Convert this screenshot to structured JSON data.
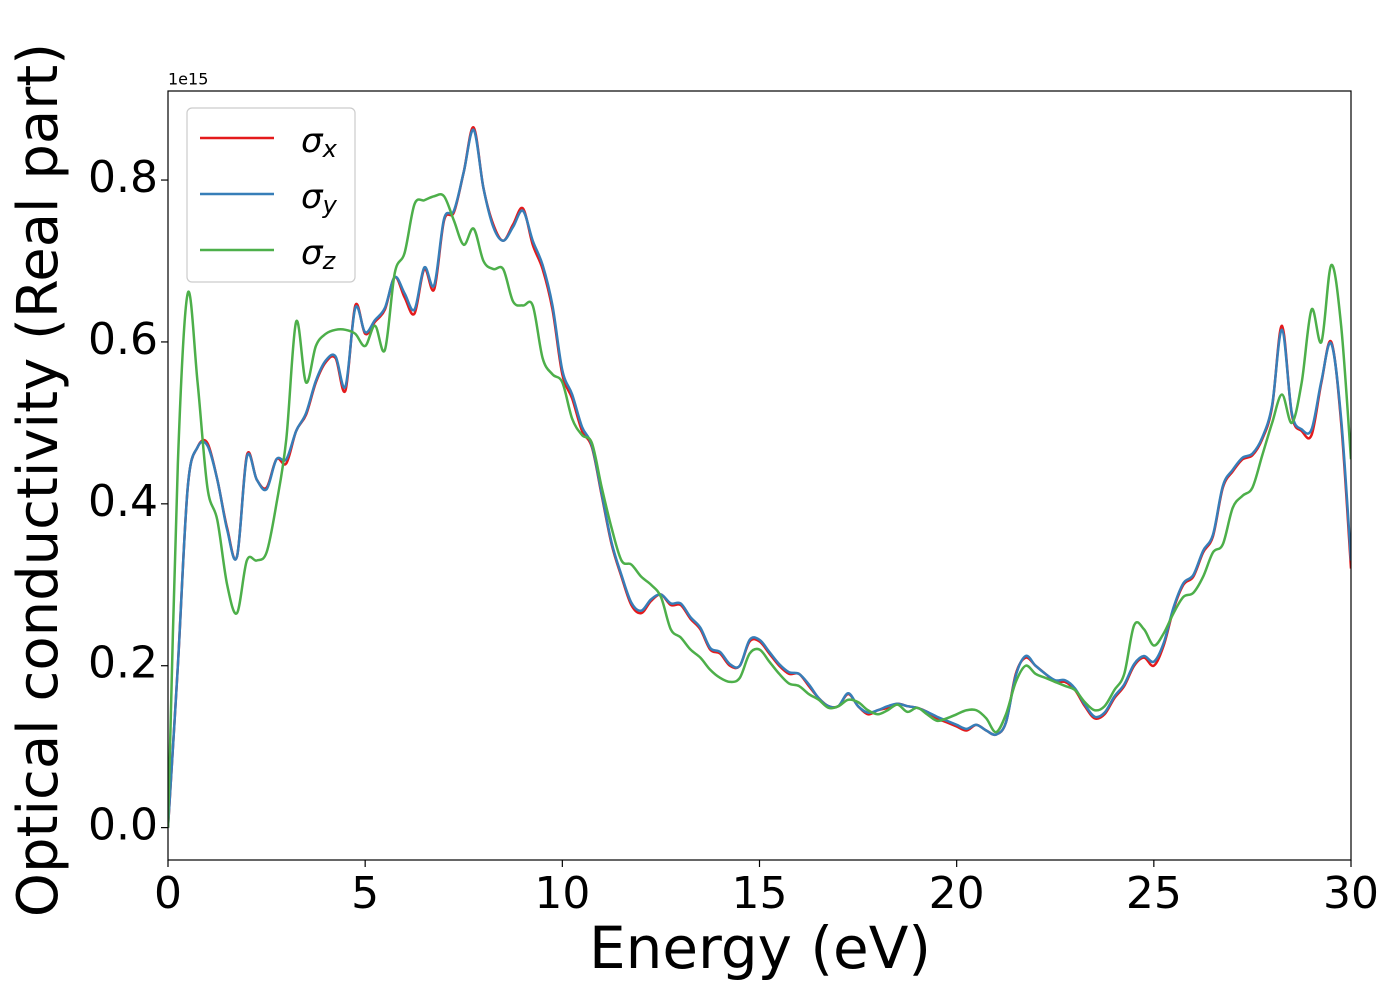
{
  "chart_data": {
    "type": "line",
    "offset_text": "1e15",
    "xlabel": "Energy (eV)",
    "ylabel": "Optical conductivity (Real part)",
    "xlim": [
      0,
      30
    ],
    "ylim": [
      -0.04,
      0.91
    ],
    "xticks": [
      0,
      5,
      10,
      15,
      20,
      25,
      30
    ],
    "yticks": [
      {
        "value": 0,
        "label": "0.0"
      },
      0.2,
      0.4,
      0.6,
      0.8
    ],
    "legend": "upper left",
    "x": [
      0,
      0.25,
      0.5,
      0.75,
      1,
      1.25,
      1.5,
      1.75,
      2,
      2.25,
      2.5,
      2.75,
      3,
      3.25,
      3.5,
      3.75,
      4,
      4.25,
      4.5,
      4.75,
      5,
      5.25,
      5.5,
      5.75,
      6,
      6.25,
      6.5,
      6.75,
      7,
      7.25,
      7.5,
      7.75,
      8,
      8.25,
      8.5,
      8.75,
      9,
      9.25,
      9.5,
      9.75,
      10,
      10.25,
      10.5,
      10.75,
      11,
      11.25,
      11.5,
      11.75,
      12,
      12.25,
      12.5,
      12.75,
      13,
      13.25,
      13.5,
      13.75,
      14,
      14.25,
      14.5,
      14.75,
      15,
      15.25,
      15.5,
      15.75,
      16,
      16.25,
      16.5,
      16.75,
      17,
      17.25,
      17.5,
      17.75,
      18,
      18.25,
      18.5,
      18.75,
      19,
      19.25,
      19.5,
      19.75,
      20,
      20.25,
      20.5,
      20.75,
      21,
      21.25,
      21.5,
      21.75,
      22,
      22.25,
      22.5,
      22.75,
      23,
      23.25,
      23.5,
      23.75,
      24,
      24.25,
      24.5,
      24.75,
      25,
      25.25,
      25.5,
      25.75,
      26,
      26.25,
      26.5,
      26.75,
      27,
      27.25,
      27.5,
      27.75,
      28,
      28.25,
      28.5,
      28.75,
      29,
      29.25,
      29.5,
      29.75,
      30
    ],
    "series": [
      {
        "name": "σx",
        "color": "#e41a1c",
        "values": [
          0,
          0.2,
          0.42,
          0.47,
          0.475,
          0.43,
          0.37,
          0.335,
          0.46,
          0.43,
          0.42,
          0.455,
          0.45,
          0.49,
          0.51,
          0.55,
          0.575,
          0.58,
          0.54,
          0.645,
          0.61,
          0.625,
          0.64,
          0.68,
          0.655,
          0.635,
          0.69,
          0.665,
          0.75,
          0.76,
          0.81,
          0.865,
          0.79,
          0.745,
          0.725,
          0.745,
          0.765,
          0.72,
          0.69,
          0.64,
          0.56,
          0.53,
          0.49,
          0.47,
          0.41,
          0.35,
          0.31,
          0.275,
          0.265,
          0.28,
          0.288,
          0.275,
          0.275,
          0.258,
          0.245,
          0.22,
          0.215,
          0.2,
          0.2,
          0.23,
          0.23,
          0.215,
          0.2,
          0.19,
          0.19,
          0.175,
          0.16,
          0.15,
          0.15,
          0.165,
          0.15,
          0.14,
          0.145,
          0.148,
          0.153,
          0.15,
          0.148,
          0.143,
          0.135,
          0.13,
          0.125,
          0.12,
          0.127,
          0.12,
          0.115,
          0.13,
          0.19,
          0.21,
          0.2,
          0.19,
          0.18,
          0.18,
          0.17,
          0.15,
          0.135,
          0.14,
          0.16,
          0.175,
          0.2,
          0.21,
          0.2,
          0.225,
          0.27,
          0.3,
          0.31,
          0.34,
          0.36,
          0.42,
          0.44,
          0.455,
          0.46,
          0.48,
          0.52,
          0.62,
          0.51,
          0.49,
          0.485,
          0.55,
          0.6,
          0.5,
          0.32
        ]
      },
      {
        "name": "σy",
        "color": "#377eb8",
        "values": [
          0,
          0.2,
          0.42,
          0.47,
          0.472,
          0.43,
          0.368,
          0.335,
          0.458,
          0.43,
          0.418,
          0.455,
          0.455,
          0.49,
          0.512,
          0.552,
          0.577,
          0.582,
          0.545,
          0.642,
          0.612,
          0.627,
          0.642,
          0.68,
          0.66,
          0.64,
          0.692,
          0.67,
          0.752,
          0.762,
          0.81,
          0.862,
          0.79,
          0.742,
          0.725,
          0.742,
          0.762,
          0.725,
          0.695,
          0.645,
          0.565,
          0.535,
          0.495,
          0.472,
          0.412,
          0.352,
          0.312,
          0.278,
          0.268,
          0.282,
          0.288,
          0.277,
          0.277,
          0.26,
          0.247,
          0.222,
          0.217,
          0.202,
          0.2,
          0.232,
          0.232,
          0.217,
          0.202,
          0.192,
          0.19,
          0.177,
          0.16,
          0.15,
          0.15,
          0.166,
          0.15,
          0.142,
          0.145,
          0.15,
          0.153,
          0.15,
          0.148,
          0.143,
          0.137,
          0.132,
          0.127,
          0.122,
          0.127,
          0.12,
          0.115,
          0.13,
          0.188,
          0.212,
          0.2,
          0.19,
          0.182,
          0.182,
          0.172,
          0.152,
          0.137,
          0.142,
          0.162,
          0.177,
          0.202,
          0.212,
          0.205,
          0.228,
          0.272,
          0.302,
          0.312,
          0.342,
          0.362,
          0.422,
          0.442,
          0.457,
          0.462,
          0.482,
          0.522,
          0.615,
          0.512,
          0.492,
          0.492,
          0.552,
          0.598,
          0.505,
          0.33
        ]
      },
      {
        "name": "σz",
        "color": "#4daf4a",
        "values": [
          0,
          0.45,
          0.66,
          0.55,
          0.42,
          0.38,
          0.3,
          0.265,
          0.33,
          0.33,
          0.34,
          0.4,
          0.48,
          0.625,
          0.55,
          0.595,
          0.61,
          0.615,
          0.615,
          0.61,
          0.595,
          0.62,
          0.59,
          0.685,
          0.71,
          0.77,
          0.775,
          0.78,
          0.78,
          0.75,
          0.72,
          0.74,
          0.7,
          0.69,
          0.69,
          0.65,
          0.645,
          0.645,
          0.58,
          0.56,
          0.55,
          0.505,
          0.485,
          0.475,
          0.42,
          0.37,
          0.33,
          0.325,
          0.31,
          0.3,
          0.285,
          0.245,
          0.235,
          0.22,
          0.21,
          0.195,
          0.185,
          0.18,
          0.185,
          0.215,
          0.22,
          0.205,
          0.19,
          0.178,
          0.175,
          0.165,
          0.158,
          0.148,
          0.15,
          0.158,
          0.155,
          0.145,
          0.14,
          0.145,
          0.152,
          0.143,
          0.148,
          0.14,
          0.132,
          0.135,
          0.14,
          0.145,
          0.145,
          0.135,
          0.118,
          0.14,
          0.18,
          0.2,
          0.19,
          0.185,
          0.18,
          0.175,
          0.17,
          0.155,
          0.145,
          0.15,
          0.17,
          0.19,
          0.25,
          0.245,
          0.225,
          0.24,
          0.265,
          0.285,
          0.29,
          0.31,
          0.34,
          0.35,
          0.395,
          0.41,
          0.42,
          0.46,
          0.5,
          0.535,
          0.5,
          0.55,
          0.64,
          0.6,
          0.695,
          0.62,
          0.455
        ]
      }
    ]
  }
}
